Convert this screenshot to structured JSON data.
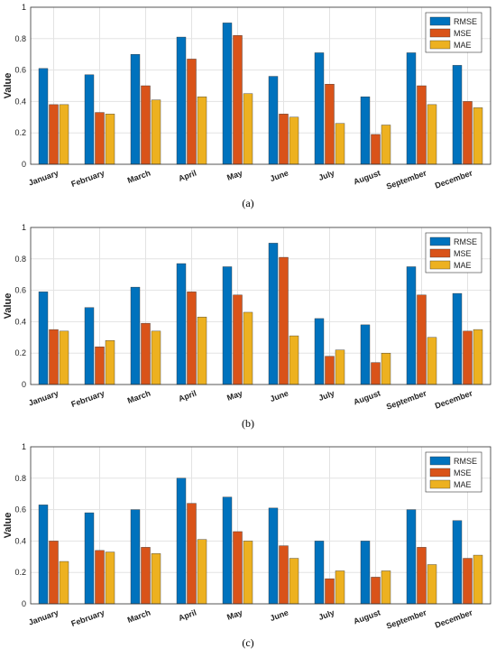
{
  "colors": {
    "RMSE": "#0072BD",
    "MSE": "#D95319",
    "MAE": "#EDB120"
  },
  "chart_data": [
    {
      "type": "bar",
      "caption": "(a)",
      "categories": [
        "January",
        "February",
        "March",
        "April",
        "May",
        "June",
        "July",
        "August",
        "September",
        "December"
      ],
      "ylabel": "Value",
      "ylim": [
        0,
        1
      ],
      "yticks": [
        "0",
        "0.2",
        "0.4",
        "0.6",
        "0.8",
        "1"
      ],
      "grid": true,
      "legend": "top-right",
      "series": [
        {
          "name": "RMSE",
          "values": [
            0.61,
            0.57,
            0.7,
            0.81,
            0.9,
            0.56,
            0.71,
            0.43,
            0.71,
            0.63
          ]
        },
        {
          "name": "MSE",
          "values": [
            0.38,
            0.33,
            0.5,
            0.67,
            0.82,
            0.32,
            0.51,
            0.19,
            0.5,
            0.4
          ]
        },
        {
          "name": "MAE",
          "values": [
            0.38,
            0.32,
            0.41,
            0.43,
            0.45,
            0.3,
            0.26,
            0.25,
            0.38,
            0.36
          ]
        }
      ]
    },
    {
      "type": "bar",
      "caption": "(b)",
      "categories": [
        "January",
        "February",
        "March",
        "April",
        "May",
        "June",
        "July",
        "August",
        "September",
        "December"
      ],
      "ylabel": "Value",
      "ylim": [
        0,
        1
      ],
      "yticks": [
        "0",
        "0.2",
        "0.4",
        "0.6",
        "0.8",
        "1"
      ],
      "grid": true,
      "legend": "top-right",
      "series": [
        {
          "name": "RMSE",
          "values": [
            0.59,
            0.49,
            0.62,
            0.77,
            0.75,
            0.9,
            0.42,
            0.38,
            0.75,
            0.58
          ]
        },
        {
          "name": "MSE",
          "values": [
            0.35,
            0.24,
            0.39,
            0.59,
            0.57,
            0.81,
            0.18,
            0.14,
            0.57,
            0.34
          ]
        },
        {
          "name": "MAE",
          "values": [
            0.34,
            0.28,
            0.34,
            0.43,
            0.46,
            0.31,
            0.22,
            0.2,
            0.3,
            0.35
          ]
        }
      ]
    },
    {
      "type": "bar",
      "caption": "(c)",
      "categories": [
        "January",
        "February",
        "March",
        "April",
        "May",
        "June",
        "July",
        "August",
        "September",
        "December"
      ],
      "ylabel": "Value",
      "ylim": [
        0,
        1
      ],
      "yticks": [
        "0",
        "0.2",
        "0.4",
        "0.6",
        "0.8",
        "1"
      ],
      "grid": true,
      "legend": "top-right",
      "series": [
        {
          "name": "RMSE",
          "values": [
            0.63,
            0.58,
            0.6,
            0.8,
            0.68,
            0.61,
            0.4,
            0.4,
            0.6,
            0.53
          ]
        },
        {
          "name": "MSE",
          "values": [
            0.4,
            0.34,
            0.36,
            0.64,
            0.46,
            0.37,
            0.16,
            0.17,
            0.36,
            0.29
          ]
        },
        {
          "name": "MAE",
          "values": [
            0.27,
            0.33,
            0.32,
            0.41,
            0.4,
            0.29,
            0.21,
            0.21,
            0.25,
            0.31
          ]
        }
      ]
    }
  ]
}
